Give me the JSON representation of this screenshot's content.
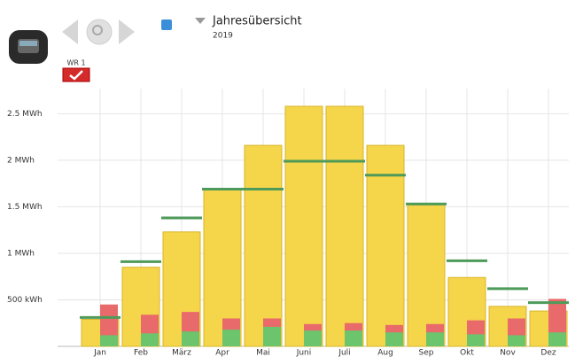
{
  "header": {
    "title": "Jahresübersicht",
    "year": "2019",
    "device": "WR 1"
  },
  "chart_data": {
    "type": "bar",
    "categories": [
      "Jan",
      "Feb",
      "März",
      "Apr",
      "Mai",
      "Juni",
      "Juli",
      "Aug",
      "Sep",
      "Okt",
      "Nov",
      "Dez"
    ],
    "series": [
      {
        "color": "#f5d54a",
        "values": [
          290,
          850,
          1230,
          1690,
          2160,
          2580,
          2580,
          2160,
          1520,
          740,
          430,
          380
        ]
      },
      {
        "color": "#e86a6a",
        "values": [
          450,
          340,
          370,
          300,
          300,
          240,
          250,
          230,
          240,
          280,
          300,
          510
        ]
      },
      {
        "color": "#6cc46c",
        "values": [
          120,
          140,
          160,
          180,
          210,
          170,
          170,
          150,
          150,
          130,
          120,
          150
        ]
      },
      {
        "color": "#4e9a5a",
        "type": "line",
        "values": [
          310,
          910,
          1380,
          1690,
          1690,
          1990,
          1990,
          1840,
          1530,
          920,
          620,
          470
        ]
      }
    ],
    "ylim": [
      0,
      2770
    ],
    "yticks": [
      {
        "value": 500,
        "label": "500 kWh"
      },
      {
        "value": 1000,
        "label": "1 MWh"
      },
      {
        "value": 1500,
        "label": "1.5 MWh"
      },
      {
        "value": 2000,
        "label": "2 MWh"
      },
      {
        "value": 2500,
        "label": "2.5 MWh"
      }
    ],
    "grid": true
  }
}
